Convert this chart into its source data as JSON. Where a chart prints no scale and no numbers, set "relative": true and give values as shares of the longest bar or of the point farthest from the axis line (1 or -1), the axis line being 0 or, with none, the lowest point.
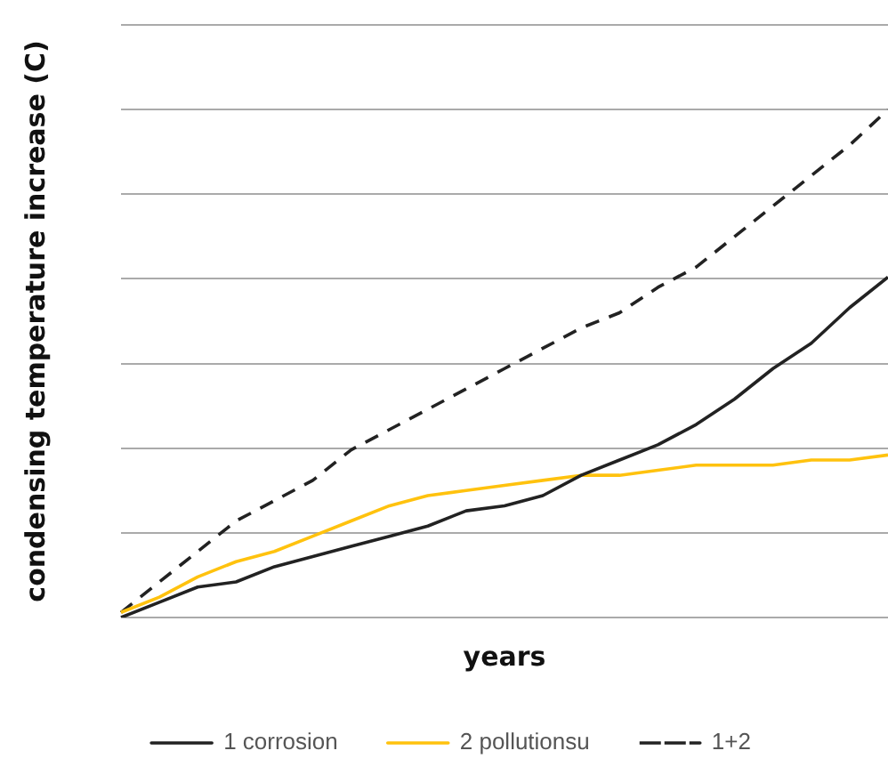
{
  "chart_data": {
    "type": "line",
    "relative": true,
    "xlabel": "years",
    "ylabel": "condensing temperature increase (C)",
    "categories": [
      null,
      null,
      null,
      null,
      null,
      null,
      null,
      null,
      null,
      null,
      null,
      null,
      null,
      null,
      null,
      null,
      null,
      null,
      null,
      null,
      null
    ],
    "series": [
      {
        "name": "1 corrosion",
        "color": "#222222",
        "line_style": "solid",
        "values": [
          0,
          0.03,
          0.06,
          0.07,
          0.1,
          0.12,
          0.14,
          0.16,
          0.18,
          0.21,
          0.22,
          0.24,
          0.28,
          0.31,
          0.34,
          0.38,
          0.43,
          0.49,
          0.54,
          0.61,
          0.67
        ]
      },
      {
        "name": "2 pollutionsu",
        "color": "#ffc20e",
        "line_style": "solid",
        "values": [
          0.01,
          0.04,
          0.08,
          0.11,
          0.13,
          0.16,
          0.19,
          0.22,
          0.24,
          0.25,
          0.26,
          0.27,
          0.28,
          0.28,
          0.29,
          0.3,
          0.3,
          0.3,
          0.31,
          0.31,
          0.32
        ]
      },
      {
        "name": "1+2",
        "color": "#222222",
        "line_style": "dashed",
        "values": [
          0.01,
          0.07,
          0.13,
          0.19,
          0.23,
          0.27,
          0.33,
          0.37,
          0.41,
          0.45,
          0.49,
          0.53,
          0.57,
          0.6,
          0.65,
          0.69,
          0.75,
          0.81,
          0.87,
          0.93,
          1
        ]
      }
    ],
    "legend": "bottom",
    "grid": "y",
    "marker": "none"
  }
}
